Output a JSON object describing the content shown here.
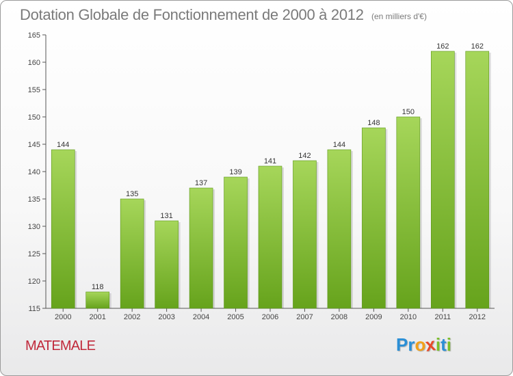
{
  "chart_data": {
    "type": "bar",
    "title": "Dotation Globale de Fonctionnement de 2000 à 2012",
    "subtitle": "(en milliers d'€)",
    "categories": [
      "2000",
      "2001",
      "2002",
      "2003",
      "2004",
      "2005",
      "2006",
      "2007",
      "2008",
      "2009",
      "2010",
      "2011",
      "2012"
    ],
    "values": [
      144,
      118,
      135,
      131,
      137,
      139,
      141,
      142,
      144,
      148,
      150,
      162,
      162
    ],
    "ylim": [
      115,
      165
    ],
    "yticks": [
      115,
      120,
      125,
      130,
      135,
      140,
      145,
      150,
      155,
      160,
      165
    ],
    "grid": false,
    "bar_color_top": "#a6d65a",
    "bar_color_bottom": "#66a31c"
  },
  "place_name": "MATEMALE",
  "logo": {
    "letters": [
      {
        "char": "P",
        "color": "#2b8fd6"
      },
      {
        "char": "r",
        "color": "#2b8fd6"
      },
      {
        "char": "o",
        "color": "#f2a01a"
      },
      {
        "char": "x",
        "color": "#e84a2a"
      },
      {
        "char": "i",
        "color": "#7bbf2a"
      },
      {
        "char": "t",
        "color": "#2b8fd6"
      },
      {
        "char": "i",
        "color": "#7bbf2a"
      }
    ]
  }
}
